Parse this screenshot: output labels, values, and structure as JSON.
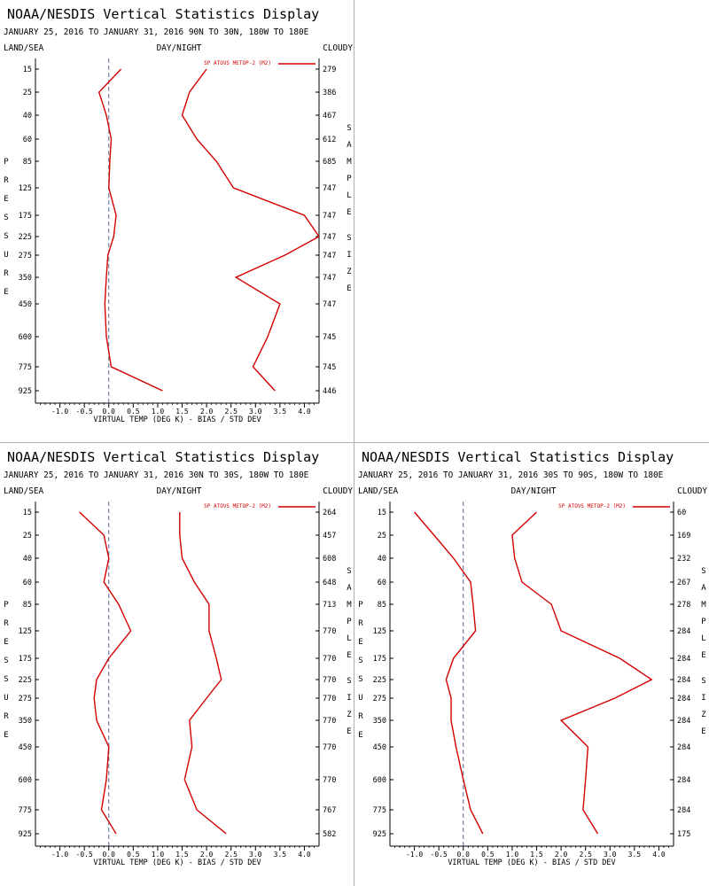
{
  "colors": {
    "profile": "#d40000",
    "text": "#000000",
    "dash": "#5a6a9a"
  },
  "panels": [
    {
      "title": "NOAA/NESDIS Vertical Statistics Display",
      "subtitle": "JANUARY 25, 2016 TO JANUARY 31, 2016  90N TO 30N, 180W TO 180E",
      "header_left": "LAND/SEA",
      "header_mid": "DAY/NIGHT",
      "header_right": "CLOUDY",
      "legend": "SP ATOVS METOP-2 (M2)",
      "left_label": "PRESSURE",
      "right_label": "SAMPLE SIZE",
      "xlabel": "VIRTUAL TEMP (DEG K) - BIAS / STD DEV",
      "xticks": [
        "-1.0",
        "-0.5",
        "0.0",
        "0.5",
        "1.0",
        "1.5",
        "2.0",
        "2.5",
        "3.0",
        "3.5",
        "4.0"
      ],
      "pressure": [
        "15",
        "25",
        "40",
        "60",
        "85",
        "125",
        "175",
        "225",
        "275",
        "350",
        "450",
        "600",
        "775",
        "925"
      ],
      "sample_size": [
        "279",
        "386",
        "467",
        "612",
        "685",
        "747",
        "747",
        "747",
        "747",
        "747",
        "747",
        "745",
        "745",
        "446"
      ],
      "chart_data": {
        "type": "line",
        "xlim": [
          -1.5,
          4.3
        ],
        "y_levels": [
          15,
          25,
          40,
          60,
          85,
          125,
          175,
          225,
          275,
          350,
          450,
          600,
          775,
          925
        ],
        "series": [
          {
            "role": "bias",
            "values": [
              0.25,
              -0.2,
              -0.05,
              0.05,
              0.02,
              0.0,
              0.15,
              0.1,
              -0.02,
              -0.05,
              -0.08,
              -0.05,
              0.05,
              1.1
            ]
          },
          {
            "role": "std_dev",
            "values": [
              2.0,
              1.65,
              1.5,
              1.8,
              2.2,
              2.55,
              4.0,
              4.3,
              3.6,
              2.6,
              3.5,
              3.25,
              2.95,
              3.4
            ]
          }
        ]
      }
    },
    {
      "title": "NOAA/NESDIS Vertical Statistics Display",
      "subtitle": "JANUARY 25, 2016 TO JANUARY 31, 2016  30N TO 30S, 180W TO 180E",
      "header_left": "LAND/SEA",
      "header_mid": "DAY/NIGHT",
      "header_right": "CLOUDY",
      "legend": "SP ATOVS METOP-2 (M2)",
      "left_label": "PRESSURE",
      "right_label": "SAMPLE SIZE",
      "xlabel": "VIRTUAL TEMP (DEG K) - BIAS / STD DEV",
      "xticks": [
        "-1.0",
        "-0.5",
        "0.0",
        "0.5",
        "1.0",
        "1.5",
        "2.0",
        "2.5",
        "3.0",
        "3.5",
        "4.0"
      ],
      "pressure": [
        "15",
        "25",
        "40",
        "60",
        "85",
        "125",
        "175",
        "225",
        "275",
        "350",
        "450",
        "600",
        "775",
        "925"
      ],
      "sample_size": [
        "264",
        "457",
        "608",
        "648",
        "713",
        "770",
        "770",
        "770",
        "770",
        "770",
        "770",
        "770",
        "767",
        "582"
      ],
      "chart_data": {
        "type": "line",
        "xlim": [
          -1.5,
          4.3
        ],
        "y_levels": [
          15,
          25,
          40,
          60,
          85,
          125,
          175,
          225,
          275,
          350,
          450,
          600,
          775,
          925
        ],
        "series": [
          {
            "role": "bias",
            "values": [
              -0.6,
              -0.1,
              0.0,
              -0.1,
              0.2,
              0.45,
              0.0,
              -0.25,
              -0.3,
              -0.25,
              0.0,
              -0.05,
              -0.15,
              0.15
            ]
          },
          {
            "role": "std_dev",
            "values": [
              1.45,
              1.45,
              1.5,
              1.75,
              2.05,
              2.05,
              2.2,
              2.3,
              2.0,
              1.65,
              1.7,
              1.55,
              1.8,
              2.4
            ]
          }
        ]
      }
    },
    {
      "title": "NOAA/NESDIS Vertical Statistics Display",
      "subtitle": "JANUARY 25, 2016 TO JANUARY 31, 2016  30S TO 90S, 180W TO 180E",
      "header_left": "LAND/SEA",
      "header_mid": "DAY/NIGHT",
      "header_right": "CLOUDY",
      "legend": "SP ATOVS METOP-2 (M2)",
      "left_label": "PRESSURE",
      "right_label": "SAMPLE SIZE",
      "xlabel": "VIRTUAL TEMP (DEG K) - BIAS / STD DEV",
      "xticks": [
        "-1.0",
        "-0.5",
        "0.0",
        "0.5",
        "1.0",
        "1.5",
        "2.0",
        "2.5",
        "3.0",
        "3.5",
        "4.0"
      ],
      "pressure": [
        "15",
        "25",
        "40",
        "60",
        "85",
        "125",
        "175",
        "225",
        "275",
        "350",
        "450",
        "600",
        "775",
        "925"
      ],
      "sample_size": [
        "60",
        "169",
        "232",
        "267",
        "278",
        "284",
        "284",
        "284",
        "284",
        "284",
        "284",
        "284",
        "284",
        "175"
      ],
      "chart_data": {
        "type": "line",
        "xlim": [
          -1.5,
          4.3
        ],
        "y_levels": [
          15,
          25,
          40,
          60,
          85,
          125,
          175,
          225,
          275,
          350,
          450,
          600,
          775,
          925
        ],
        "series": [
          {
            "role": "bias",
            "values": [
              -1.0,
              -0.6,
              -0.2,
              0.15,
              0.2,
              0.25,
              -0.2,
              -0.35,
              -0.25,
              -0.25,
              -0.15,
              0.0,
              0.15,
              0.4
            ]
          },
          {
            "role": "std_dev",
            "values": [
              1.5,
              1.0,
              1.05,
              1.2,
              1.8,
              2.0,
              3.2,
              3.85,
              3.1,
              2.0,
              2.55,
              2.5,
              2.45,
              2.75
            ]
          }
        ]
      }
    }
  ]
}
